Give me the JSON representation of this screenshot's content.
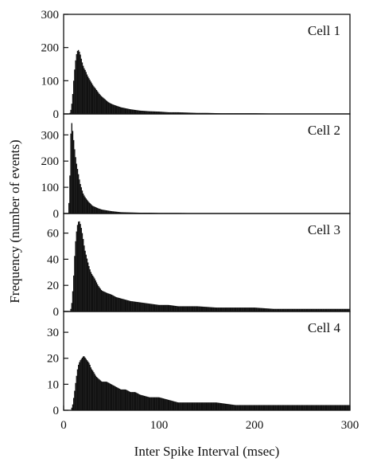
{
  "chart_data": {
    "type": "bar",
    "xlabel": "Inter Spike Interval (msec)",
    "ylabel": "Frequency (number of events)",
    "xlim": [
      0,
      300
    ],
    "xticks": [
      "0",
      "100",
      "200",
      "300"
    ],
    "bin_width_ms": 1,
    "grid": false,
    "panels": [
      {
        "label": "Cell 1",
        "ylim": [
          0,
          300
        ],
        "yticks": [
          "0",
          "100",
          "200",
          "300"
        ],
        "x": [
          7,
          9,
          11,
          13,
          15,
          17,
          19,
          21,
          23,
          25,
          27,
          29,
          31,
          33,
          35,
          37,
          39,
          41,
          43,
          45,
          47,
          49,
          52,
          56,
          60,
          65,
          70,
          75,
          80,
          90,
          100,
          110,
          120,
          130,
          140,
          150,
          165,
          180,
          200,
          220,
          240,
          260,
          280,
          300
        ],
        "values": [
          3,
          40,
          120,
          175,
          195,
          185,
          160,
          140,
          130,
          115,
          105,
          95,
          85,
          78,
          70,
          62,
          55,
          50,
          45,
          40,
          35,
          32,
          28,
          24,
          20,
          17,
          14,
          12,
          10,
          8,
          7,
          5,
          5,
          4,
          3,
          3,
          2,
          2,
          2,
          1,
          1,
          1,
          1,
          1
        ]
      },
      {
        "label": "Cell 2",
        "ylim": [
          0,
          380
        ],
        "yticks": [
          "0",
          "100",
          "200",
          "300"
        ],
        "x": [
          6,
          7,
          8,
          9,
          10,
          11,
          12,
          13,
          14,
          15,
          16,
          17,
          18,
          19,
          20,
          22,
          24,
          26,
          28,
          30,
          33,
          36,
          40,
          45,
          50,
          55,
          60,
          70,
          80,
          90,
          100,
          120,
          140,
          160,
          180,
          200,
          220,
          250,
          280,
          300
        ],
        "values": [
          40,
          250,
          360,
          330,
          300,
          260,
          230,
          200,
          180,
          160,
          140,
          120,
          105,
          95,
          80,
          65,
          55,
          45,
          38,
          30,
          25,
          20,
          15,
          12,
          9,
          7,
          5,
          4,
          3,
          3,
          2,
          2,
          1,
          1,
          1,
          1,
          1,
          1,
          1,
          1
        ]
      },
      {
        "label": "Cell 3",
        "ylim": [
          0,
          75
        ],
        "yticks": [
          "0",
          "20",
          "40",
          "60"
        ],
        "x": [
          8,
          10,
          12,
          14,
          16,
          18,
          20,
          22,
          24,
          26,
          28,
          30,
          32,
          34,
          36,
          38,
          40,
          43,
          46,
          50,
          55,
          60,
          65,
          70,
          80,
          90,
          100,
          110,
          120,
          140,
          160,
          180,
          200,
          220,
          240,
          260,
          280,
          300
        ],
        "values": [
          2,
          20,
          50,
          65,
          70,
          66,
          58,
          48,
          42,
          36,
          31,
          28,
          26,
          23,
          20,
          18,
          16,
          15,
          14,
          13,
          11,
          10,
          9,
          8,
          7,
          6,
          5,
          5,
          4,
          4,
          3,
          3,
          3,
          2,
          2,
          2,
          2,
          2
        ]
      },
      {
        "label": "Cell 4",
        "ylim": [
          0,
          38
        ],
        "yticks": [
          "0",
          "10",
          "20",
          "30"
        ],
        "x": [
          9,
          11,
          13,
          15,
          17,
          19,
          21,
          23,
          25,
          27,
          29,
          31,
          34,
          37,
          40,
          45,
          50,
          55,
          60,
          65,
          70,
          75,
          80,
          90,
          100,
          110,
          120,
          130,
          140,
          150,
          160,
          180,
          200,
          220,
          240,
          260,
          280,
          300
        ],
        "values": [
          1,
          6,
          12,
          17,
          19,
          20,
          21,
          20,
          19,
          18,
          16,
          15,
          13,
          12,
          11,
          11,
          10,
          9,
          8,
          8,
          7,
          7,
          6,
          5,
          5,
          4,
          3,
          3,
          3,
          3,
          3,
          2,
          2,
          2,
          2,
          2,
          2,
          2
        ]
      }
    ]
  }
}
